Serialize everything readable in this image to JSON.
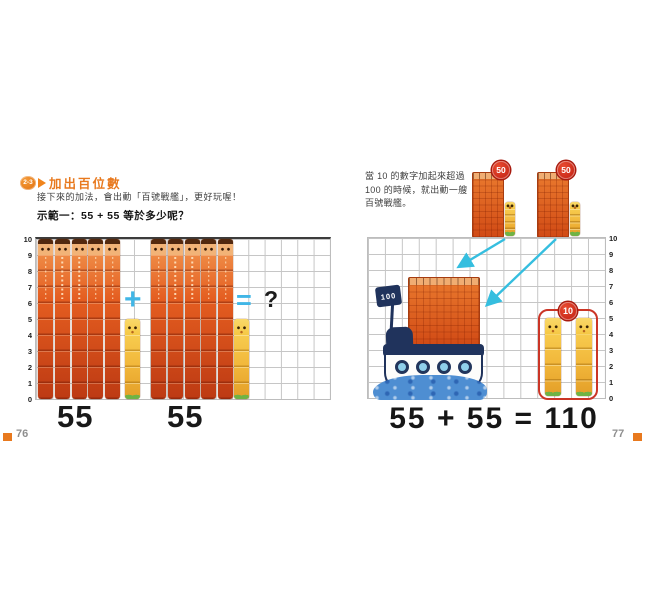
{
  "left_page": {
    "badge_label": "2-3",
    "title": "加出百位數",
    "intro": "接下來的加法，會出動「百號戰艦」，更好玩喔！",
    "example_heading": "示範一：55 + 55 等於多少呢？",
    "plus": "+",
    "equals": "=",
    "question": "?",
    "operand1": "55",
    "operand2": "55",
    "page_number": "76"
  },
  "right_page": {
    "note_lines": [
      "當 10 的數字加起來超過",
      "100 的時候，就出動一艘",
      "百號戰艦。"
    ],
    "badge_50_left": "50",
    "badge_50_right": "50",
    "flag_label": "100",
    "badge_10": "10",
    "equation": "55 + 55 = 110",
    "page_number": "77"
  },
  "axis_ticks": [
    "10",
    "9",
    "8",
    "7",
    "6",
    "5",
    "4",
    "3",
    "2",
    "1",
    "0"
  ],
  "figures": {
    "left_grid": {
      "rows": 10,
      "groups": [
        {
          "tens": 5,
          "ones": 5,
          "value": 55
        },
        {
          "tens": 5,
          "ones": 5,
          "value": 55
        }
      ]
    },
    "right_grid": {
      "rows": 10,
      "hundred_block_value": 100,
      "ones_towers": [
        5,
        5
      ]
    },
    "minis": {
      "block_value": 50,
      "ones": 5
    }
  },
  "colors": {
    "accent_orange": "#e8791e",
    "cyan_operator": "#41b6e6",
    "arrow_cyan": "#35bedf",
    "badge_red": "#c81f12",
    "navy_ship": "#20335c",
    "grid_line": "#c6c6c6"
  }
}
